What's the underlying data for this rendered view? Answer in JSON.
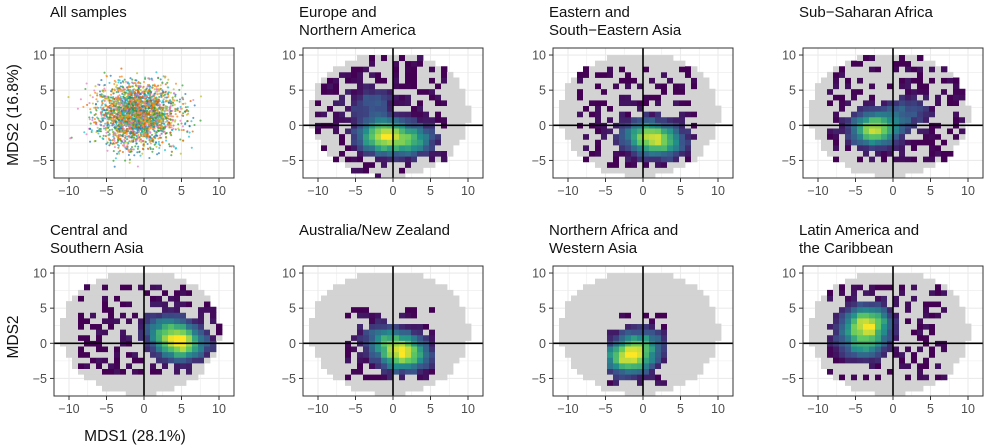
{
  "chart_data": {
    "type": "heatmap",
    "ylabel_row1": "MDS2 (16.8%)",
    "ylabel_row2": "MDS2",
    "xlabel": "MDS1 (28.1%)",
    "xlim": [
      -12,
      12
    ],
    "ylim": [
      -7.5,
      11
    ],
    "xticks": [
      -10,
      -5,
      0,
      5,
      10
    ],
    "yticks": [
      -5,
      0,
      5,
      10
    ],
    "colormap": [
      "#440154",
      "#3b528b",
      "#21918c",
      "#5ec962",
      "#fde725"
    ],
    "background_color": "#d3d3d3",
    "reference_lines": {
      "x": 0,
      "y": 0
    },
    "panels": [
      {
        "title": [
          "All samples"
        ],
        "kind": "scatter",
        "series_colors": [
          "#e377c2",
          "#1f77b4",
          "#2ca02c",
          "#bcbd22",
          "#ff7f0e",
          "#d95f02",
          "#17becf"
        ],
        "description_points": {
          "center": [
            -1,
            1.5
          ],
          "spread": [
            4.2,
            3.2
          ]
        }
      },
      {
        "title": [
          "Europe and",
          "Northern America"
        ],
        "kind": "density",
        "hotspots": [
          {
            "x": -1.5,
            "y": -1.5,
            "w": 1.0
          },
          {
            "x": 2.5,
            "y": -2,
            "w": 0.6
          },
          {
            "x": -3,
            "y": 3,
            "w": 0.3
          }
        ],
        "extent": [
          [
            -10.5,
            7
          ],
          [
            -7.5,
            10.5
          ]
        ]
      },
      {
        "title": [
          "Eastern and",
          "South−Eastern Asia"
        ],
        "kind": "density",
        "hotspots": [
          {
            "x": 0.5,
            "y": -1.5,
            "w": 0.8
          },
          {
            "x": 3,
            "y": -2.5,
            "w": 0.5
          }
        ],
        "extent": [
          [
            -8.5,
            7
          ],
          [
            -6,
            8
          ]
        ]
      },
      {
        "title": [
          "Sub−Saharan Africa"
        ],
        "kind": "density",
        "hotspots": [
          {
            "x": -2.5,
            "y": -0.5,
            "w": 1.0
          },
          {
            "x": 2,
            "y": 2,
            "w": 0.3
          }
        ],
        "extent": [
          [
            -9,
            10
          ],
          [
            -5.5,
            10
          ]
        ]
      },
      {
        "title": [
          "Central and",
          "Southern Asia"
        ],
        "kind": "density",
        "hotspots": [
          {
            "x": 5,
            "y": 0,
            "w": 1.0
          },
          {
            "x": 3,
            "y": 2,
            "w": 0.5
          }
        ],
        "extent": [
          [
            -9,
            11
          ],
          [
            -4.5,
            8
          ]
        ]
      },
      {
        "title": [
          "Australia/New Zealand"
        ],
        "kind": "density",
        "hotspots": [
          {
            "x": 1.5,
            "y": -1.5,
            "w": 1.0
          },
          {
            "x": -1,
            "y": 0.5,
            "w": 0.5
          }
        ],
        "extent": [
          [
            -6,
            6
          ],
          [
            -5,
            5
          ]
        ]
      },
      {
        "title": [
          "Northern Africa and",
          "Western Asia"
        ],
        "kind": "density",
        "hotspots": [
          {
            "x": -2,
            "y": -2,
            "w": 1.0
          },
          {
            "x": 0,
            "y": 0,
            "w": 0.5
          }
        ],
        "extent": [
          [
            -5,
            3
          ],
          [
            -6,
            4
          ]
        ]
      },
      {
        "title": [
          "Latin America and",
          "the Caribbean"
        ],
        "kind": "density",
        "hotspots": [
          {
            "x": -3.5,
            "y": 3,
            "w": 1.0
          },
          {
            "x": -4,
            "y": 0,
            "w": 0.6
          }
        ],
        "extent": [
          [
            -9,
            7
          ],
          [
            -5,
            8
          ]
        ]
      }
    ]
  }
}
